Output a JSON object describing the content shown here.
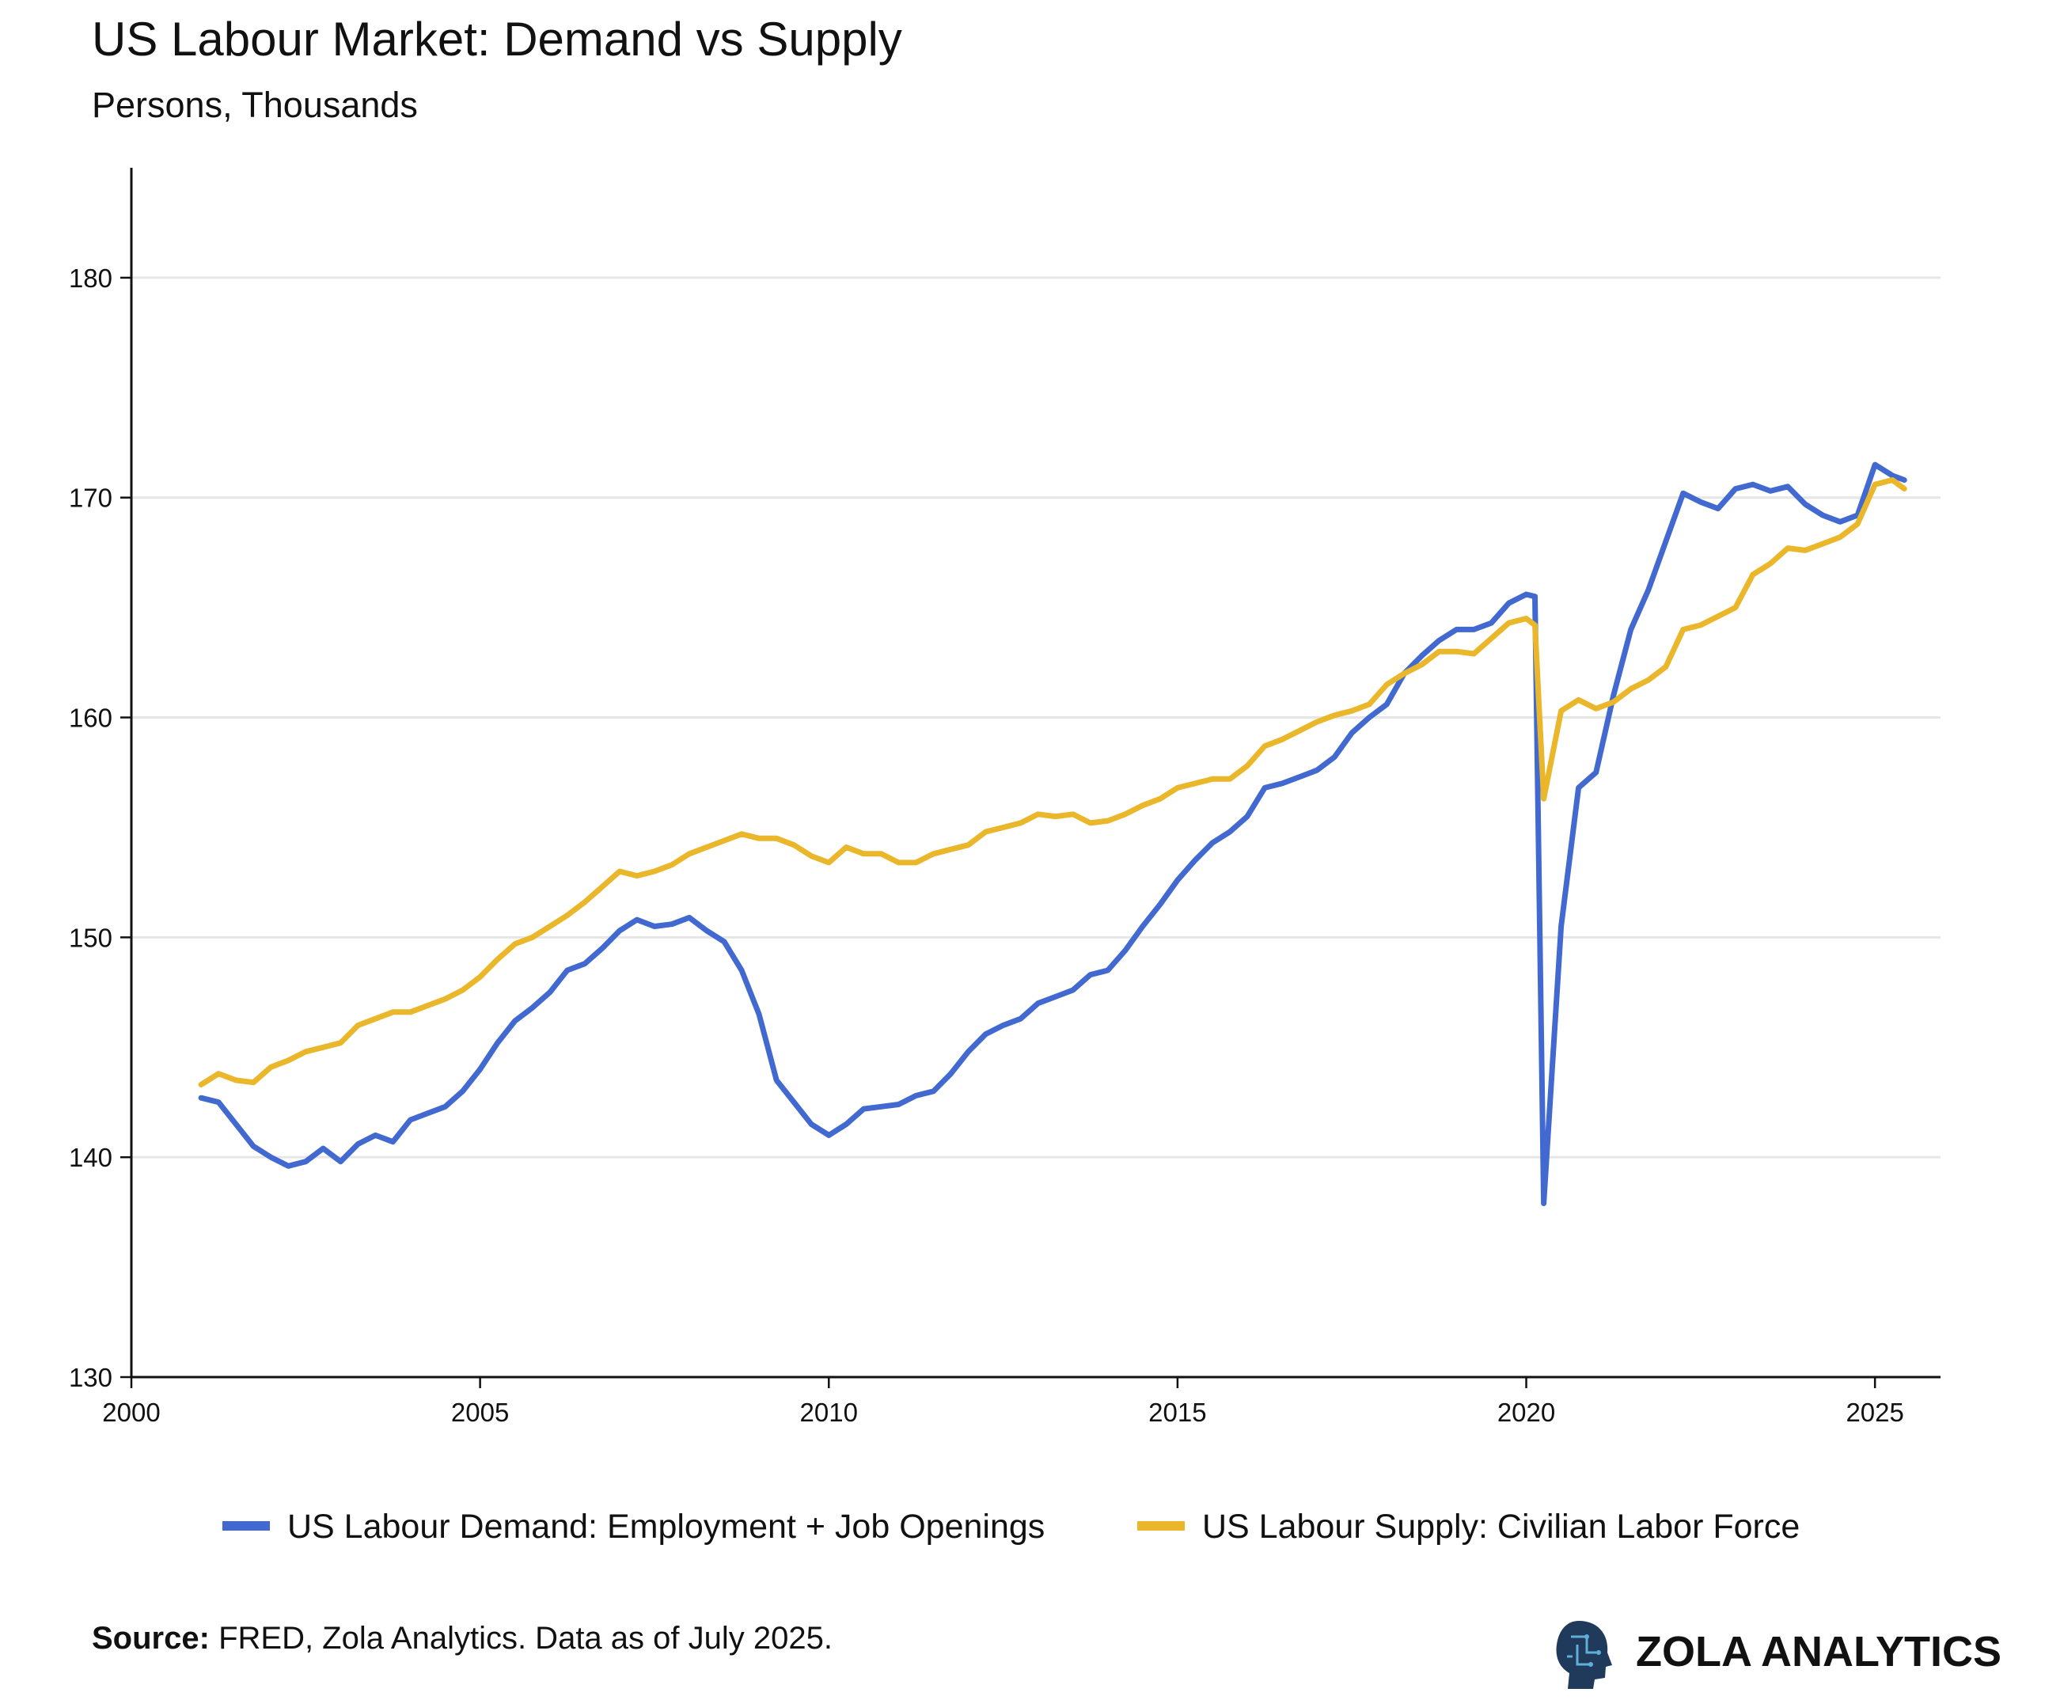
{
  "chart_data": {
    "type": "line",
    "title": "US Labour Market: Demand vs Supply",
    "subtitle": "Persons, Thousands",
    "source_label": "Source:",
    "source": "FRED, Zola Analytics. Data as of July 2025.",
    "brand": "ZOLA ANALYTICS",
    "x": [
      2001,
      2001.25,
      2001.5,
      2001.75,
      2002,
      2002.25,
      2002.5,
      2002.75,
      2003,
      2003.25,
      2003.5,
      2003.75,
      2004,
      2004.25,
      2004.5,
      2004.75,
      2005,
      2005.25,
      2005.5,
      2005.75,
      2006,
      2006.25,
      2006.5,
      2006.75,
      2007,
      2007.25,
      2007.5,
      2007.75,
      2008,
      2008.25,
      2008.5,
      2008.75,
      2009,
      2009.25,
      2009.5,
      2009.75,
      2010,
      2010.25,
      2010.5,
      2010.75,
      2011,
      2011.25,
      2011.5,
      2011.75,
      2012,
      2012.25,
      2012.5,
      2012.75,
      2013,
      2013.25,
      2013.5,
      2013.75,
      2014,
      2014.25,
      2014.5,
      2014.75,
      2015,
      2015.25,
      2015.5,
      2015.75,
      2016,
      2016.25,
      2016.5,
      2016.75,
      2017,
      2017.25,
      2017.5,
      2017.75,
      2018,
      2018.25,
      2018.5,
      2018.75,
      2019,
      2019.25,
      2019.5,
      2019.75,
      2020,
      2020.125,
      2020.25,
      2020.5,
      2020.75,
      2021,
      2021.25,
      2021.5,
      2021.75,
      2022,
      2022.25,
      2022.5,
      2022.75,
      2023,
      2023.25,
      2023.5,
      2023.75,
      2024,
      2024.25,
      2024.5,
      2024.75,
      2025,
      2025.25,
      2025.42
    ],
    "series": [
      {
        "name": "US Labour Demand: Employment + Job Openings",
        "color": "#4169cf",
        "values": [
          142.7,
          142.5,
          141.5,
          140.5,
          140.0,
          139.6,
          139.8,
          140.4,
          139.8,
          140.6,
          141.0,
          140.7,
          141.7,
          142.0,
          142.3,
          143.0,
          144.0,
          145.2,
          146.2,
          146.8,
          147.5,
          148.5,
          148.8,
          149.5,
          150.3,
          150.8,
          150.5,
          150.6,
          150.9,
          150.3,
          149.8,
          148.5,
          146.5,
          143.5,
          142.5,
          141.5,
          141.0,
          141.5,
          142.2,
          142.3,
          142.4,
          142.8,
          143.0,
          143.8,
          144.8,
          145.6,
          146.0,
          146.3,
          147.0,
          147.3,
          147.6,
          148.3,
          148.5,
          149.4,
          150.5,
          151.5,
          152.6,
          153.5,
          154.3,
          154.8,
          155.5,
          156.8,
          157.0,
          157.3,
          157.6,
          158.2,
          159.3,
          160.0,
          160.6,
          162.0,
          162.8,
          163.5,
          164.0,
          164.0,
          164.3,
          165.2,
          165.6,
          165.5,
          137.9,
          150.5,
          156.8,
          157.5,
          161.0,
          164.0,
          165.8,
          168.0,
          170.2,
          169.8,
          169.5,
          170.4,
          170.6,
          170.3,
          170.5,
          169.7,
          169.2,
          168.9,
          169.2,
          171.5,
          171.0,
          170.8
        ]
      },
      {
        "name": "US Labour Supply: Civilian Labor Force",
        "color": "#eab62a",
        "values": [
          143.3,
          143.8,
          143.5,
          143.4,
          144.1,
          144.4,
          144.8,
          145.0,
          145.2,
          146.0,
          146.3,
          146.6,
          146.6,
          146.9,
          147.2,
          147.6,
          148.2,
          149.0,
          149.7,
          150.0,
          150.5,
          151.0,
          151.6,
          152.3,
          153.0,
          152.8,
          153.0,
          153.3,
          153.8,
          154.1,
          154.4,
          154.7,
          154.5,
          154.5,
          154.2,
          153.7,
          153.4,
          154.1,
          153.8,
          153.8,
          153.4,
          153.4,
          153.8,
          154.0,
          154.2,
          154.8,
          155.0,
          155.2,
          155.6,
          155.5,
          155.6,
          155.2,
          155.3,
          155.6,
          156.0,
          156.3,
          156.8,
          157.0,
          157.2,
          157.2,
          157.8,
          158.7,
          159.0,
          159.4,
          159.8,
          160.1,
          160.3,
          160.6,
          161.5,
          162.0,
          162.4,
          163.0,
          163.0,
          162.9,
          163.6,
          164.3,
          164.5,
          164.2,
          156.3,
          160.3,
          160.8,
          160.4,
          160.7,
          161.3,
          161.7,
          162.3,
          164.0,
          164.2,
          164.6,
          165.0,
          166.5,
          167.0,
          167.7,
          167.6,
          167.9,
          168.2,
          168.8,
          170.6,
          170.8,
          170.4
        ]
      }
    ],
    "xlim": [
      2000,
      2025.94
    ],
    "xticks": [
      2000,
      2005,
      2010,
      2015,
      2020,
      2025
    ],
    "ylim": [
      130,
      185
    ],
    "yticks": [
      130,
      140,
      150,
      160,
      170,
      180
    ],
    "grid": true,
    "legend": "bottom"
  }
}
